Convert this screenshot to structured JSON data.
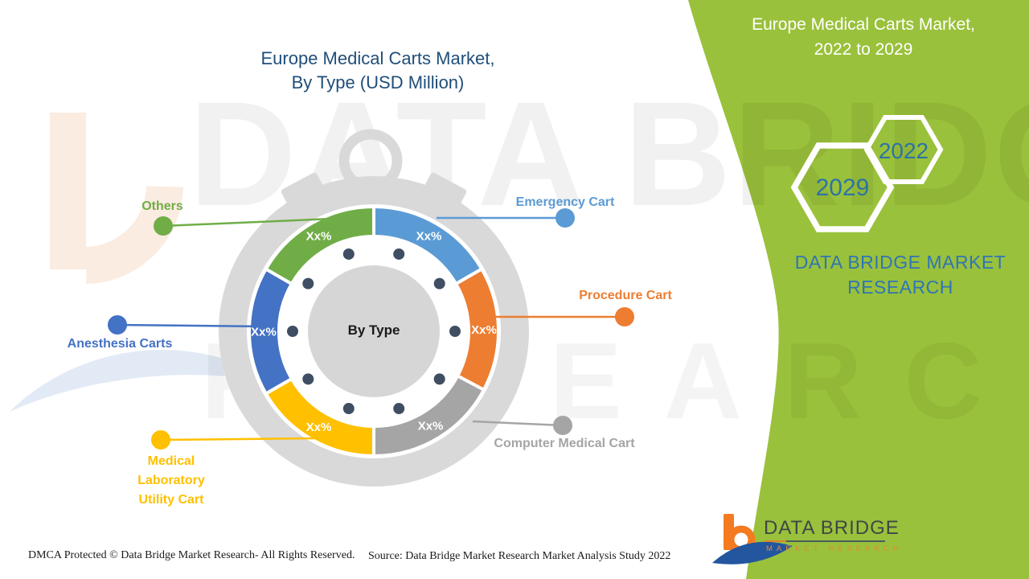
{
  "main_title": "Europe Medical Carts Market,\nBy Type (USD Million)",
  "banner": {
    "title": "Europe Medical Carts Market,\n2022 to 2029",
    "hex_large_year": "2029",
    "hex_small_year": "2022",
    "brand": "DATA BRIDGE MARKET\nRESEARCH",
    "green": "#9AC13B"
  },
  "watermark": {
    "line1": "DATA BRIDGE",
    "line2": "RESEARCH"
  },
  "footer": {
    "dmca": "DMCA Protected © Data Bridge Market Research- All Rights Reserved.",
    "source": "Source: Data Bridge Market Research Market Analysis Study 2022"
  },
  "logo": {
    "name": "DATA BRIDGE",
    "subtitle": "MARKET RESEARCH"
  },
  "chart_data": {
    "type": "pie",
    "variant": "donut-stopwatch",
    "title": "Europe Medical Carts Market, By Type (USD Million)",
    "center_label": "By Type",
    "unit": "USD Million",
    "legend_position": "callouts",
    "segments": [
      {
        "name": "Emergency Cart",
        "value_label": "Xx%",
        "color": "#5B9BD5",
        "start_deg": 0,
        "end_deg": 60
      },
      {
        "name": "Procedure Cart",
        "value_label": "Xx%",
        "color": "#ED7D31",
        "start_deg": 60,
        "end_deg": 118
      },
      {
        "name": "Computer Medical Cart",
        "value_label": "Xx%",
        "color": "#A5A5A5",
        "start_deg": 118,
        "end_deg": 180
      },
      {
        "name": "Medical Laboratory Utility Cart",
        "display": "Medical\nLaboratory\nUtility Cart",
        "value_label": "Xx%",
        "color": "#FFC000",
        "start_deg": 180,
        "end_deg": 240
      },
      {
        "name": "Anesthesia Carts",
        "value_label": "Xx%",
        "color": "#4472C4",
        "start_deg": 240,
        "end_deg": 300
      },
      {
        "name": "Others",
        "value_label": "Xx%",
        "color": "#70AD47",
        "start_deg": 300,
        "end_deg": 360
      }
    ]
  }
}
